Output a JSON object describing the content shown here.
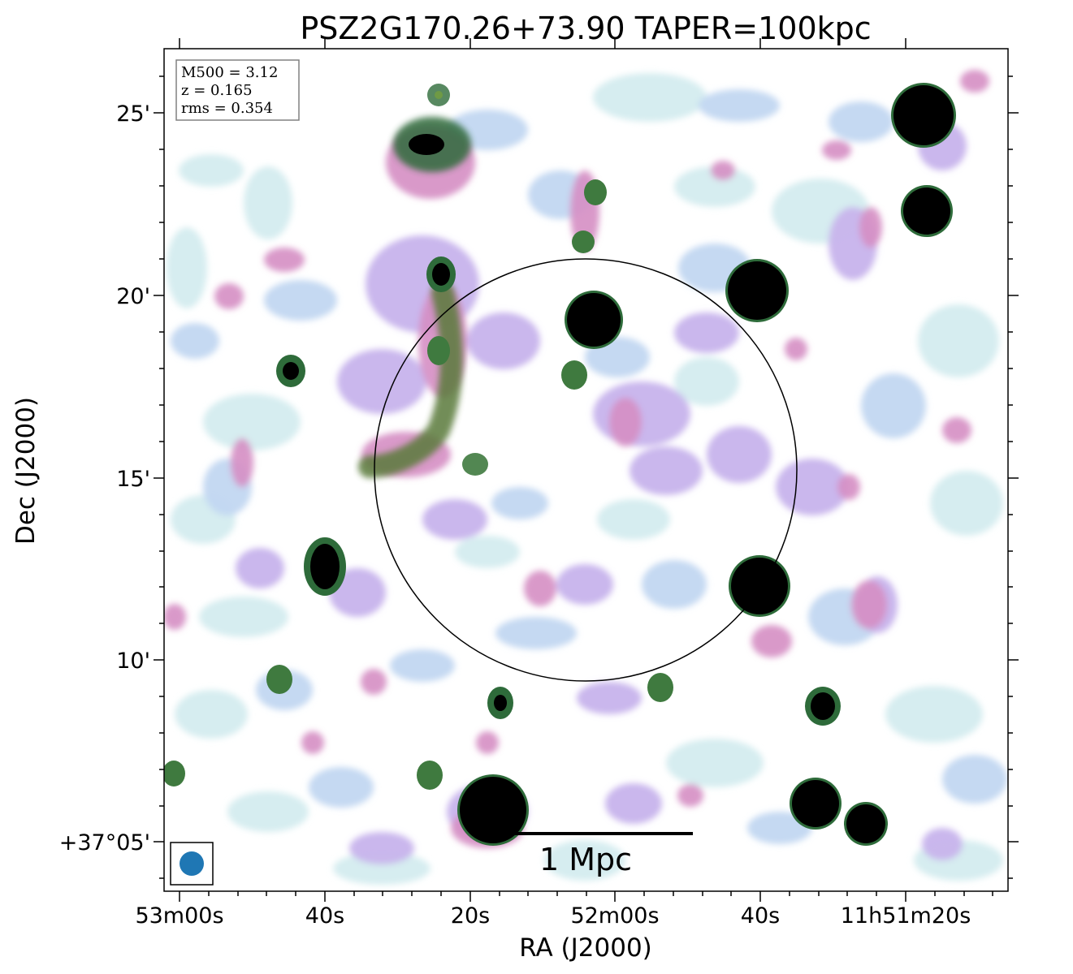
{
  "title": "PSZ2G170.26+73.90 TAPER=100kpc",
  "xlabel": "RA (J2000)",
  "ylabel": "Dec (J2000)",
  "x_ticks": [
    "53m00s",
    "40s",
    "20s",
    "52m00s",
    "40s",
    "11h51m20s"
  ],
  "y_ticks": [
    "25'",
    "20'",
    "15'",
    "10'",
    "+37°05'"
  ],
  "info": {
    "m500": "M500 = 3.12",
    "z": "z = 0.165",
    "rms": "rms = 0.354"
  },
  "scalebar": {
    "label": "1 Mpc"
  },
  "colors": {
    "beam": "#1f77b4",
    "source_core": "#000000",
    "ring_green": "#2e6b3a",
    "pink": "#d58ec4",
    "lilac": "#c8b4ec",
    "pale_blue": "#c2d7f2",
    "pale_cyan": "#d2ecef"
  }
}
